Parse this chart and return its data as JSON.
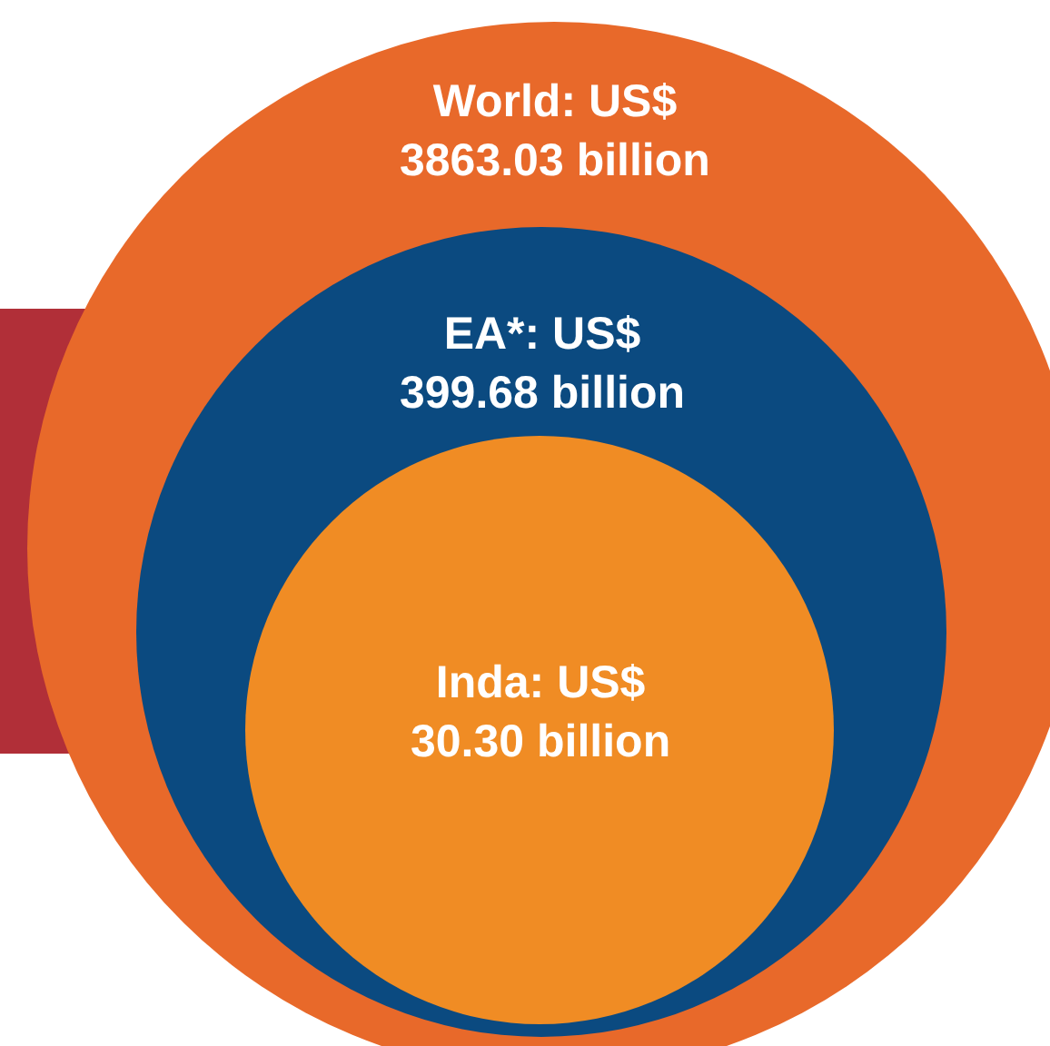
{
  "chart_data": {
    "type": "other",
    "categories": [
      "World: US$",
      "EA*: US$",
      "Inda: US$"
    ],
    "values": [
      3863.03,
      399.68,
      30.3
    ],
    "value_labels": [
      "3863.03 billion",
      "399.68 billion",
      "30.30 billion"
    ],
    "colors": [
      "#e8692a",
      "#0b4a80",
      "#f08c24"
    ]
  }
}
